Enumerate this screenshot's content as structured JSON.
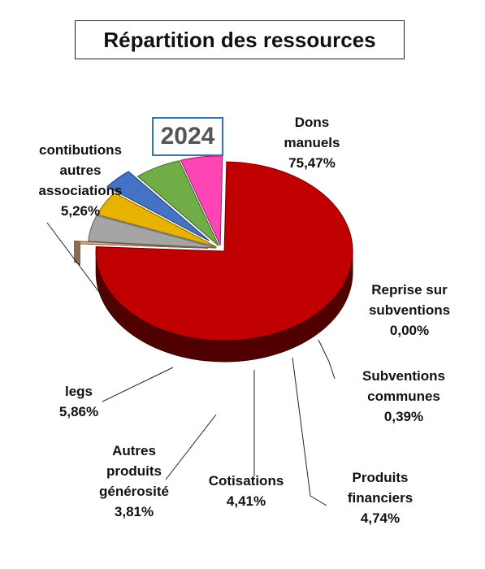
{
  "title": "Répartition des ressources",
  "chart_data": {
    "type": "pie",
    "year": "2024",
    "slices": [
      {
        "label": [
          "Dons",
          "manuels"
        ],
        "value": 75.47,
        "value_text": "75,47%",
        "color": "#c00000"
      },
      {
        "label": [
          "Reprise sur",
          "subventions"
        ],
        "value": 0.0,
        "value_text": "0,00%",
        "color": "#c55a11"
      },
      {
        "label": [
          "Subventions",
          "communes"
        ],
        "value": 0.39,
        "value_text": "0,39%",
        "color": "#f4b183"
      },
      {
        "label": [
          "Produits",
          "financiers"
        ],
        "value": 4.74,
        "value_text": "4,74%",
        "color": "#a5a5a5"
      },
      {
        "label": [
          "Cotisations"
        ],
        "value": 4.41,
        "value_text": "4,41%",
        "color": "#e8b200"
      },
      {
        "label": [
          "Autres",
          "produits",
          "générosité"
        ],
        "value": 3.81,
        "value_text": "3,81%",
        "color": "#4472c4"
      },
      {
        "label": [
          "legs"
        ],
        "value": 5.86,
        "value_text": "5,86%",
        "color": "#70ad47"
      },
      {
        "label": [
          "contibutions",
          "autres",
          "associations"
        ],
        "value": 5.26,
        "value_text": "5,26%",
        "color": "#ff44b4"
      }
    ]
  }
}
